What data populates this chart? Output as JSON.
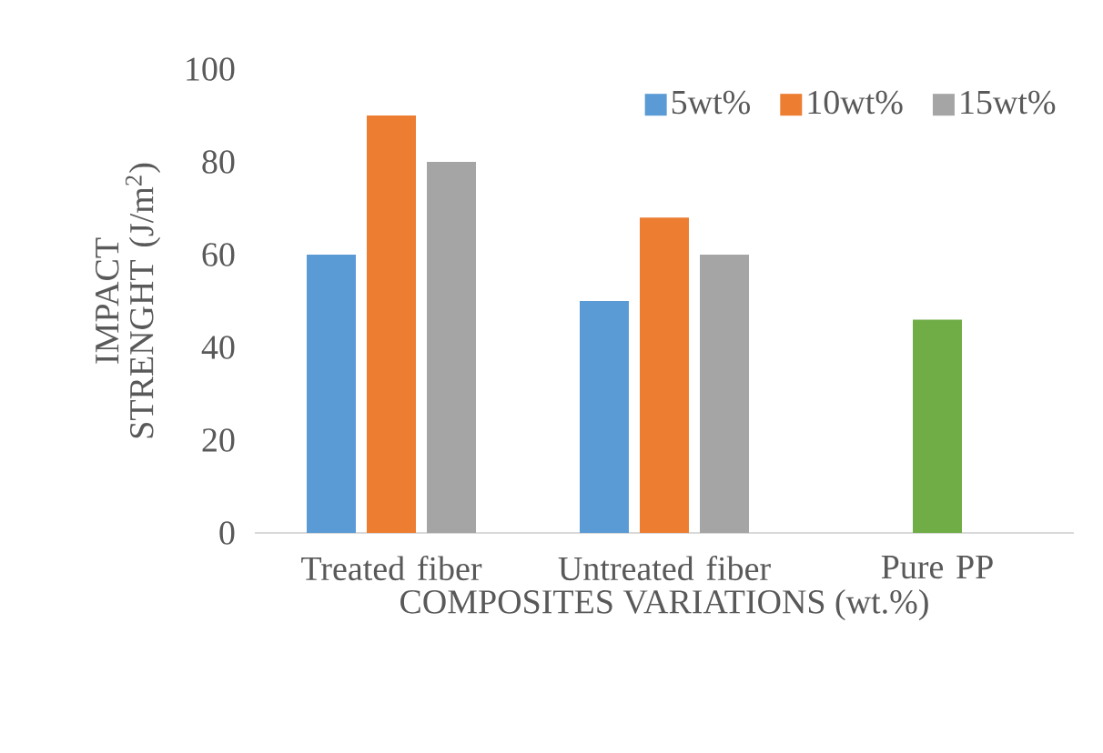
{
  "chart_data": {
    "type": "bar",
    "xlabel": "COMPOSITES VARIATIONS (wt.%)",
    "ylabel": "IMPACT  STRENGHT (J/m$^{2}$)",
    "categories": [
      "Treated fiber",
      "Untreated fiber",
      "Pure PP"
    ],
    "series": [
      {
        "name": "5wt%",
        "color": "#5b9bd5",
        "values": [
          60,
          50,
          null
        ]
      },
      {
        "name": "10wt%",
        "color": "#ed7d31",
        "values": [
          90,
          68,
          46
        ],
        "colors": [
          "#ed7d31",
          "#ed7d31",
          "#70ad47"
        ]
      },
      {
        "name": "15wt%",
        "color": "#a5a5a5",
        "values": [
          80,
          60,
          null
        ]
      }
    ],
    "ylim": [
      0,
      100
    ],
    "yticks": [
      0,
      20,
      40,
      60,
      80,
      100
    ],
    "grid": false,
    "legend": "top right"
  }
}
